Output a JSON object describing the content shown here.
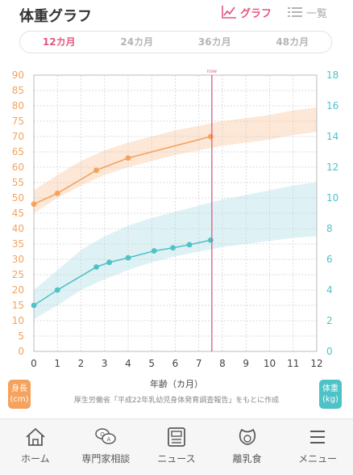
{
  "header": {
    "title": "体重グラフ",
    "graph_label": "グラフ",
    "list_label": "一覧"
  },
  "tabs": [
    {
      "label": "12カ月",
      "active": true
    },
    {
      "label": "24カ月",
      "active": false
    },
    {
      "label": "36カ月",
      "active": false
    },
    {
      "label": "48カ月",
      "active": false
    }
  ],
  "footer": {
    "height_badge_line1": "身長",
    "height_badge_line2": "(cm)",
    "weight_badge_line1": "体重",
    "weight_badge_line2": "(kg)",
    "source": "厚生労働省「平成22年乳幼児身体発育調査報告」をもとに作成"
  },
  "nav": [
    {
      "label": "ホーム",
      "icon": "home-icon"
    },
    {
      "label": "専門家相談",
      "icon": "qa-bubble-icon"
    },
    {
      "label": "ニュース",
      "icon": "news-icon"
    },
    {
      "label": "離乳食",
      "icon": "bib-icon"
    },
    {
      "label": "メニュー",
      "icon": "menu-icon"
    }
  ],
  "colors": {
    "height": "#f4a25e",
    "height_band": "#fde3cf",
    "weight": "#4fc2c7",
    "weight_band": "#d8f0f3",
    "now_line": "#d9668e",
    "accent": "#e2587f"
  },
  "chart_data": {
    "type": "line",
    "xlabel": "年齢（カ月）",
    "x_ticks": [
      0,
      1,
      2,
      3,
      4,
      5,
      6,
      7,
      8,
      9,
      10,
      11,
      12
    ],
    "xlim": [
      0,
      12
    ],
    "left_axis": {
      "ylim": [
        0,
        90
      ],
      "ticks": [
        0,
        5,
        10,
        15,
        20,
        25,
        30,
        35,
        40,
        45,
        50,
        55,
        60,
        65,
        70,
        75,
        80,
        85,
        90
      ]
    },
    "right_axis": {
      "ylim": [
        0,
        18
      ],
      "ticks": [
        0,
        2,
        4,
        6,
        8,
        10,
        12,
        14,
        16,
        18
      ]
    },
    "now_x": 7.55,
    "now_label": "now",
    "grid": true,
    "series": [
      {
        "name": "身長",
        "axis": "left",
        "x": [
          0,
          1,
          2.65,
          4,
          7.5
        ],
        "values": [
          48,
          51.5,
          59,
          63,
          70
        ]
      },
      {
        "name": "体重",
        "axis": "right",
        "x": [
          0,
          1,
          2.65,
          3.2,
          4,
          5.1,
          5.9,
          6.6,
          7.5
        ],
        "values": [
          3.0,
          4.0,
          5.5,
          5.8,
          6.1,
          6.55,
          6.75,
          6.95,
          7.25
        ]
      }
    ],
    "bands": [
      {
        "axis": "left",
        "x": [
          0,
          1,
          2,
          3,
          4,
          5,
          6,
          7,
          8,
          9,
          10,
          11,
          12
        ],
        "low": [
          45,
          50,
          54,
          57.5,
          60,
          62,
          64,
          65.5,
          67,
          68,
          69,
          70.5,
          71.5
        ],
        "high": [
          52.5,
          57.5,
          62,
          65.5,
          68,
          70,
          72,
          73.5,
          75,
          76,
          77,
          78.5,
          79.5
        ]
      },
      {
        "axis": "right",
        "x": [
          0,
          1,
          2,
          3,
          4,
          5,
          6,
          7,
          8,
          9,
          10,
          11,
          12
        ],
        "low": [
          2.1,
          3.0,
          4.0,
          4.7,
          5.3,
          5.8,
          6.2,
          6.5,
          6.8,
          7.0,
          7.2,
          7.4,
          7.5
        ],
        "high": [
          4.0,
          5.3,
          6.6,
          7.5,
          8.2,
          8.7,
          9.1,
          9.5,
          9.9,
          10.2,
          10.5,
          10.8,
          11.0
        ]
      }
    ]
  }
}
